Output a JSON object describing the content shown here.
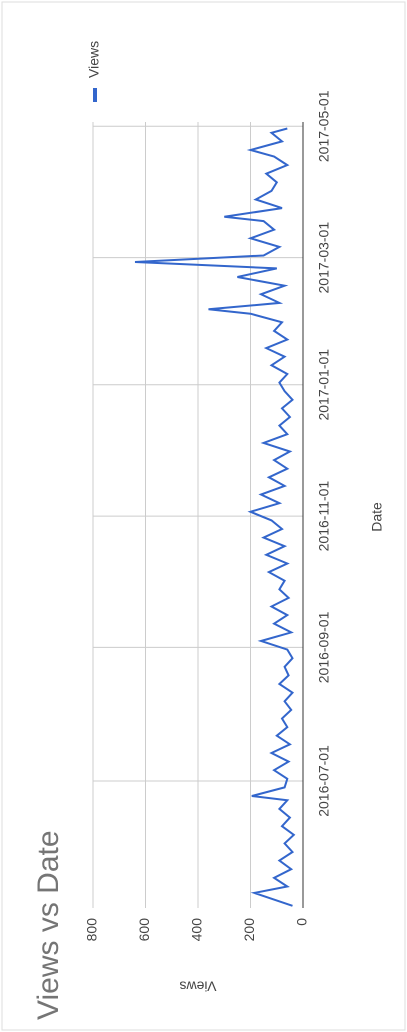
{
  "chart_data": {
    "type": "line",
    "title": "Views vs Date",
    "x_label": "Date",
    "y_label": "Views",
    "x": [
      "2016-05-04",
      "2016-05-10",
      "2016-05-13",
      "2016-05-17",
      "2016-05-21",
      "2016-05-25",
      "2016-05-29",
      "2016-06-02",
      "2016-06-06",
      "2016-06-10",
      "2016-06-14",
      "2016-06-18",
      "2016-06-22",
      "2016-06-24",
      "2016-06-28",
      "2016-07-02",
      "2016-07-06",
      "2016-07-10",
      "2016-07-14",
      "2016-07-18",
      "2016-07-22",
      "2016-07-26",
      "2016-07-30",
      "2016-08-03",
      "2016-08-07",
      "2016-08-11",
      "2016-08-15",
      "2016-08-19",
      "2016-08-23",
      "2016-08-27",
      "2016-08-31",
      "2016-09-04",
      "2016-09-08",
      "2016-09-12",
      "2016-09-16",
      "2016-09-20",
      "2016-09-24",
      "2016-09-28",
      "2016-10-02",
      "2016-10-06",
      "2016-10-10",
      "2016-10-14",
      "2016-10-18",
      "2016-10-22",
      "2016-10-26",
      "2016-10-30",
      "2016-11-03",
      "2016-11-07",
      "2016-11-11",
      "2016-11-15",
      "2016-11-19",
      "2016-11-23",
      "2016-11-27",
      "2016-12-01",
      "2016-12-05",
      "2016-12-09",
      "2016-12-13",
      "2016-12-17",
      "2016-12-21",
      "2016-12-25",
      "2016-12-29",
      "2017-01-02",
      "2017-01-06",
      "2017-01-10",
      "2017-01-14",
      "2017-01-18",
      "2017-01-22",
      "2017-01-26",
      "2017-01-30",
      "2017-02-03",
      "2017-02-05",
      "2017-02-08",
      "2017-02-12",
      "2017-02-16",
      "2017-02-20",
      "2017-02-24",
      "2017-02-27",
      "2017-03-02",
      "2017-03-06",
      "2017-03-10",
      "2017-03-14",
      "2017-03-18",
      "2017-03-20",
      "2017-03-24",
      "2017-03-28",
      "2017-04-01",
      "2017-04-05",
      "2017-04-09",
      "2017-04-13",
      "2017-04-17",
      "2017-04-20",
      "2017-04-24",
      "2017-04-28",
      "2017-04-30"
    ],
    "series": [
      {
        "name": "Views",
        "color": "#3366cc",
        "values": [
          40,
          185,
          60,
          110,
          45,
          90,
          40,
          70,
          35,
          80,
          50,
          90,
          60,
          195,
          70,
          60,
          110,
          55,
          120,
          50,
          100,
          60,
          80,
          45,
          70,
          40,
          90,
          55,
          70,
          40,
          60,
          160,
          45,
          110,
          60,
          120,
          55,
          90,
          70,
          130,
          60,
          140,
          70,
          150,
          80,
          120,
          200,
          90,
          160,
          70,
          130,
          60,
          110,
          50,
          150,
          60,
          90,
          50,
          80,
          40,
          70,
          90,
          60,
          120,
          70,
          140,
          60,
          110,
          80,
          200,
          360,
          90,
          160,
          70,
          250,
          100,
          640,
          150,
          90,
          200,
          110,
          150,
          300,
          80,
          180,
          120,
          100,
          140,
          60,
          110,
          200,
          80,
          120,
          60
        ]
      }
    ],
    "xlim": [
      "2016-05-03",
      "2017-05-03"
    ],
    "xticks": [
      "2016-07-01",
      "2016-09-01",
      "2016-11-01",
      "2017-01-01",
      "2017-03-01",
      "2017-05-01"
    ],
    "ylim": [
      0,
      800
    ],
    "yticks": [
      0,
      200,
      400,
      600,
      800
    ],
    "grid": true,
    "legend": "top-right"
  }
}
